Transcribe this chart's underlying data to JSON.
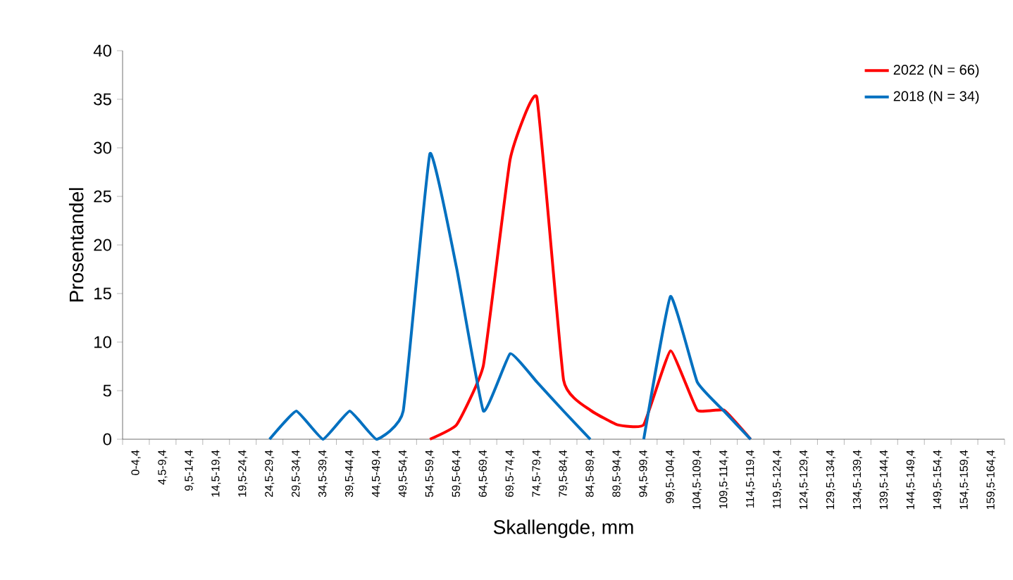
{
  "chart_data": {
    "type": "line",
    "xlabel": "Skallengde, mm",
    "ylabel": "Prosentandel",
    "categories": [
      "0-4,4",
      "4,5-9,4",
      "9,5-14,4",
      "14,5-19,4",
      "19,5-24,4",
      "24,5-29,4",
      "29,5-34,4",
      "34,5-39,4",
      "39,5-44,4",
      "44,5-49,4",
      "49,5-54,4",
      "54,5-59,4",
      "59,5-64,4",
      "64,5-69,4",
      "69,5-74,4",
      "74,5-79,4",
      "79,5-84,4",
      "84,5-89,4",
      "89,5-94,4",
      "94,5-99,4",
      "99,5-104,4",
      "104,5-109,4",
      "109,5-114,4",
      "114,5-119,4",
      "119,5-124,4",
      "124,5-129,4",
      "129,5-134,4",
      "134,5-139,4",
      "139,5-144,4",
      "144,5-149,4",
      "149,5-154,4",
      "154,5-159,4",
      "159,5-164,4"
    ],
    "series": [
      {
        "name": "2022 (N = 66)",
        "color": "#ff0000",
        "values": [
          null,
          null,
          null,
          null,
          null,
          null,
          null,
          null,
          null,
          null,
          null,
          0,
          1.5,
          7.6,
          28.8,
          35.2,
          6.1,
          3.0,
          1.5,
          1.5,
          9.1,
          3.0,
          3.0,
          0,
          null,
          null,
          null,
          null,
          null,
          null,
          null,
          null,
          null
        ]
      },
      {
        "name": "2018 (N = 34)",
        "color": "#0070c0",
        "values": [
          null,
          null,
          null,
          null,
          null,
          0,
          2.9,
          0,
          2.9,
          0,
          2.9,
          29.4,
          17.6,
          2.9,
          8.8,
          5.9,
          2.9,
          0,
          null,
          0,
          14.7,
          5.9,
          2.9,
          0,
          null,
          null,
          null,
          null,
          null,
          null,
          null,
          null,
          null
        ]
      }
    ],
    "ylim": [
      0,
      40
    ],
    "yticks": [
      0,
      5,
      10,
      15,
      20,
      25,
      30,
      35,
      40
    ],
    "grid": false,
    "legend": "top right",
    "marker": "none",
    "line_style": "solid"
  }
}
